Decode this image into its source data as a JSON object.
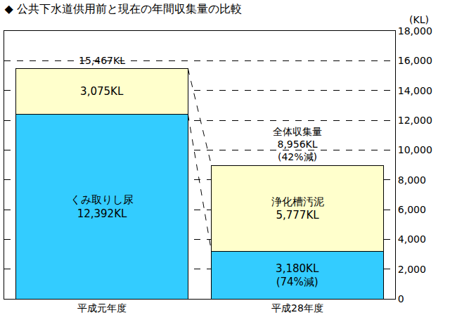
{
  "chart_data": {
    "type": "bar",
    "title": "◆ 公共下水道供用前と現在の年間収集量の比較",
    "ylabel": "(KL)",
    "categories": [
      "平成元年度",
      "平成28年度"
    ],
    "stacked": true,
    "data_labels": true,
    "grid": true,
    "series": [
      {
        "name": "くみ取りし尿",
        "color": "#33ccff",
        "values": [
          12392,
          3180
        ],
        "value_labels": [
          "くみ取りし尿\n12,392KL",
          "3,180KL\n(74%減)"
        ]
      },
      {
        "name": "浄化槽汚泥",
        "color": "#ffffcc",
        "values": [
          3075,
          5777
        ],
        "value_labels": [
          "3,075KL",
          "浄化槽汚泥\n5,777KL"
        ]
      }
    ],
    "annotations": [
      {
        "text": "15,467KL",
        "x": "平成元年度",
        "y": 15467
      },
      {
        "text": "全体収集量\n8,956KL\n(42%減)",
        "x": "平成28年度",
        "y": 8956
      }
    ],
    "ylim": [
      0,
      18000
    ],
    "yticks": [
      0,
      {
        "value": 2000,
        "label": "2,000"
      },
      {
        "value": 4000,
        "label": "4,000"
      },
      {
        "value": 6000,
        "label": "6,000"
      },
      {
        "value": 8000,
        "label": "8,000"
      },
      {
        "value": 10000,
        "label": "10,000"
      },
      {
        "value": 12000,
        "label": "12,000"
      },
      {
        "value": 14000,
        "label": "14,000"
      },
      {
        "value": 16000,
        "label": "16,000"
      },
      {
        "value": 18000,
        "label": "18,000"
      }
    ]
  }
}
